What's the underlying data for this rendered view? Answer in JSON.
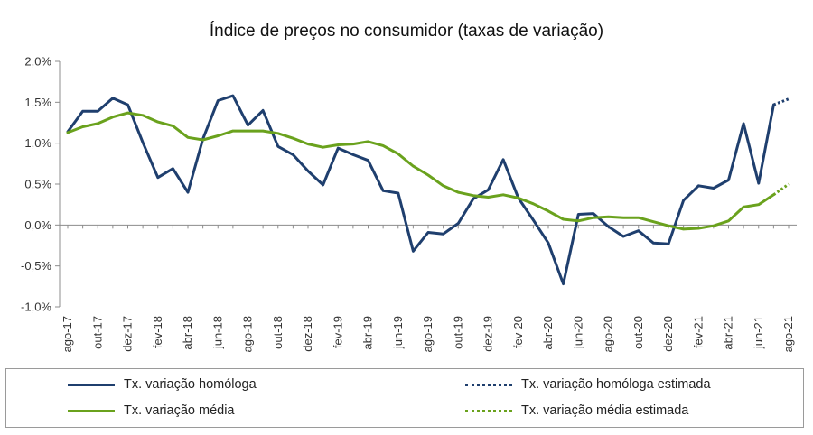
{
  "chart_data": {
    "type": "line",
    "title": "Índice de preços no consumidor  (taxas  de variação)",
    "ylim": [
      -1.0,
      2.0
    ],
    "yticks": [
      "2,0%",
      "1,5%",
      "1,0%",
      "0,5%",
      "0,0%",
      "-0,5%",
      "-1,0%"
    ],
    "ytick_values": [
      2.0,
      1.5,
      1.0,
      0.5,
      0.0,
      -0.5,
      -1.0
    ],
    "x": [
      "ago-17",
      "set-17",
      "out-17",
      "nov-17",
      "dez-17",
      "jan-18",
      "fev-18",
      "mar-18",
      "abr-18",
      "mai-18",
      "jun-18",
      "jul-18",
      "ago-18",
      "set-18",
      "out-18",
      "nov-18",
      "dez-18",
      "jan-19",
      "fev-19",
      "mar-19",
      "abr-19",
      "mai-19",
      "jun-19",
      "jul-19",
      "ago-19",
      "set-19",
      "out-19",
      "nov-19",
      "dez-19",
      "jan-20",
      "fev-20",
      "mar-20",
      "abr-20",
      "mai-20",
      "jun-20",
      "jul-20",
      "ago-20",
      "set-20",
      "out-20",
      "nov-20",
      "dez-20",
      "jan-21",
      "fev-21",
      "mar-21",
      "abr-21",
      "mai-21",
      "jun-21",
      "jul-21",
      "ago-21"
    ],
    "xtick_labels": [
      "ago-17",
      "out-17",
      "dez-17",
      "fev-18",
      "abr-18",
      "jun-18",
      "ago-18",
      "out-18",
      "dez-18",
      "fev-19",
      "abr-19",
      "jun-19",
      "ago-19",
      "out-19",
      "dez-19",
      "fev-20",
      "abr-20",
      "jun-20",
      "ago-20",
      "out-20",
      "dez-20",
      "fev-21",
      "abr-21",
      "jun-21",
      "ago-21"
    ],
    "grid": false,
    "legend_position": "bottom",
    "series": [
      {
        "name": "Tx. variação homóloga",
        "color": "#1f3f6e",
        "style": "solid",
        "values": [
          1.14,
          1.39,
          1.39,
          1.55,
          1.47,
          1.01,
          0.58,
          0.69,
          0.4,
          1.05,
          1.52,
          1.58,
          1.22,
          1.4,
          0.96,
          0.86,
          0.66,
          0.49,
          0.94,
          0.86,
          0.79,
          0.42,
          0.39,
          -0.32,
          -0.09,
          -0.11,
          0.02,
          0.32,
          0.43,
          0.8,
          0.33,
          0.06,
          -0.22,
          -0.72,
          0.13,
          0.14,
          -0.02,
          -0.14,
          -0.07,
          -0.22,
          -0.23,
          0.3,
          0.48,
          0.45,
          0.55,
          1.24,
          0.51,
          1.47,
          null
        ]
      },
      {
        "name": "Tx. variação homóloga estimada",
        "color": "#1f3f6e",
        "style": "dotted",
        "values": [
          null,
          null,
          null,
          null,
          null,
          null,
          null,
          null,
          null,
          null,
          null,
          null,
          null,
          null,
          null,
          null,
          null,
          null,
          null,
          null,
          null,
          null,
          null,
          null,
          null,
          null,
          null,
          null,
          null,
          null,
          null,
          null,
          null,
          null,
          null,
          null,
          null,
          null,
          null,
          null,
          null,
          null,
          null,
          null,
          null,
          null,
          null,
          1.47,
          1.54
        ]
      },
      {
        "name": "Tx. variação média",
        "color": "#6aa21d",
        "style": "solid",
        "values": [
          1.13,
          1.2,
          1.24,
          1.32,
          1.37,
          1.34,
          1.26,
          1.21,
          1.07,
          1.04,
          1.09,
          1.15,
          1.15,
          1.15,
          1.12,
          1.06,
          0.99,
          0.95,
          0.98,
          0.99,
          1.02,
          0.97,
          0.87,
          0.72,
          0.61,
          0.48,
          0.4,
          0.36,
          0.34,
          0.37,
          0.33,
          0.26,
          0.17,
          0.07,
          0.05,
          0.09,
          0.1,
          0.09,
          0.09,
          0.04,
          -0.01,
          -0.05,
          -0.04,
          -0.01,
          0.05,
          0.22,
          0.25,
          0.37,
          null
        ]
      },
      {
        "name": "Tx. variação média  estimada",
        "color": "#6aa21d",
        "style": "dotted",
        "values": [
          null,
          null,
          null,
          null,
          null,
          null,
          null,
          null,
          null,
          null,
          null,
          null,
          null,
          null,
          null,
          null,
          null,
          null,
          null,
          null,
          null,
          null,
          null,
          null,
          null,
          null,
          null,
          null,
          null,
          null,
          null,
          null,
          null,
          null,
          null,
          null,
          null,
          null,
          null,
          null,
          null,
          null,
          null,
          null,
          null,
          null,
          null,
          0.37,
          0.5
        ]
      }
    ]
  }
}
